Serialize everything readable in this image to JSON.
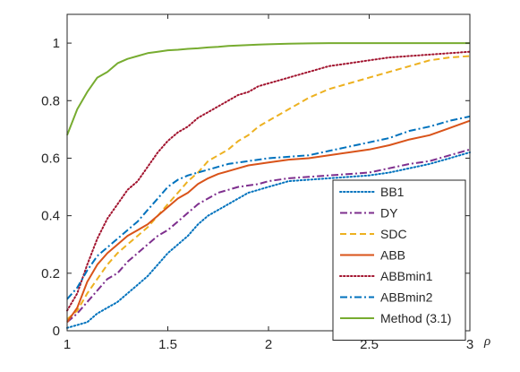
{
  "chart_data": {
    "type": "line",
    "title": "",
    "xlabel": "ρ",
    "ylabel": "",
    "xlim": [
      1,
      3
    ],
    "ylim": [
      0,
      1.1
    ],
    "xticks": [
      1,
      1.5,
      2,
      2.5,
      3
    ],
    "xtick_labels": [
      "1",
      "1.5",
      "2",
      "2.5",
      "3"
    ],
    "yticks": [
      0,
      0.2,
      0.4,
      0.6,
      0.8,
      1
    ],
    "ytick_labels": [
      "0",
      "0.2",
      "0.4",
      "0.6",
      "0.8",
      "1"
    ],
    "grid": false,
    "legend_position": "bottom-right",
    "x": [
      1,
      1.05,
      1.1,
      1.15,
      1.2,
      1.25,
      1.3,
      1.35,
      1.4,
      1.45,
      1.5,
      1.55,
      1.6,
      1.65,
      1.7,
      1.75,
      1.8,
      1.85,
      1.9,
      1.95,
      2,
      2.1,
      2.2,
      2.3,
      2.4,
      2.5,
      2.6,
      2.7,
      2.8,
      2.9,
      3
    ],
    "series": [
      {
        "name": "BB1",
        "color": "#0072BD",
        "dash": "dotted",
        "values": [
          0.01,
          0.02,
          0.03,
          0.06,
          0.08,
          0.1,
          0.13,
          0.16,
          0.19,
          0.23,
          0.27,
          0.3,
          0.33,
          0.37,
          0.4,
          0.42,
          0.44,
          0.46,
          0.48,
          0.49,
          0.5,
          0.52,
          0.525,
          0.53,
          0.535,
          0.54,
          0.55,
          0.565,
          0.58,
          0.6,
          0.62
        ]
      },
      {
        "name": "DY",
        "color": "#7E2F8E",
        "dash": "dashdot",
        "values": [
          0.03,
          0.06,
          0.1,
          0.14,
          0.18,
          0.2,
          0.24,
          0.27,
          0.3,
          0.33,
          0.35,
          0.38,
          0.41,
          0.44,
          0.46,
          0.48,
          0.49,
          0.5,
          0.505,
          0.51,
          0.52,
          0.53,
          0.535,
          0.54,
          0.545,
          0.55,
          0.565,
          0.58,
          0.59,
          0.61,
          0.63
        ]
      },
      {
        "name": "SDC",
        "color": "#EDB120",
        "dash": "dashed",
        "values": [
          0.04,
          0.07,
          0.13,
          0.18,
          0.23,
          0.27,
          0.3,
          0.33,
          0.36,
          0.4,
          0.44,
          0.48,
          0.52,
          0.55,
          0.59,
          0.61,
          0.63,
          0.66,
          0.68,
          0.71,
          0.73,
          0.77,
          0.81,
          0.84,
          0.86,
          0.88,
          0.9,
          0.92,
          0.94,
          0.95,
          0.955
        ]
      },
      {
        "name": "ABB",
        "color": "#D95319",
        "dash": "solid",
        "values": [
          0.03,
          0.08,
          0.17,
          0.23,
          0.27,
          0.3,
          0.33,
          0.35,
          0.37,
          0.4,
          0.43,
          0.46,
          0.48,
          0.51,
          0.53,
          0.545,
          0.555,
          0.565,
          0.575,
          0.58,
          0.585,
          0.595,
          0.6,
          0.61,
          0.62,
          0.63,
          0.645,
          0.665,
          0.68,
          0.705,
          0.73
        ]
      },
      {
        "name": "ABBmin1",
        "color": "#A2142F",
        "dash": "dotted",
        "values": [
          0.07,
          0.13,
          0.23,
          0.32,
          0.39,
          0.44,
          0.49,
          0.52,
          0.57,
          0.62,
          0.66,
          0.69,
          0.71,
          0.74,
          0.76,
          0.78,
          0.8,
          0.82,
          0.83,
          0.85,
          0.86,
          0.88,
          0.9,
          0.92,
          0.93,
          0.94,
          0.95,
          0.955,
          0.96,
          0.965,
          0.97
        ]
      },
      {
        "name": "ABBmin2",
        "color": "#0072BD",
        "dash": "dashdot",
        "values": [
          0.11,
          0.15,
          0.21,
          0.26,
          0.29,
          0.32,
          0.35,
          0.38,
          0.42,
          0.46,
          0.5,
          0.525,
          0.54,
          0.55,
          0.56,
          0.57,
          0.58,
          0.585,
          0.59,
          0.595,
          0.6,
          0.605,
          0.61,
          0.625,
          0.64,
          0.655,
          0.67,
          0.695,
          0.71,
          0.73,
          0.745
        ]
      },
      {
        "name": "Method (3.1)",
        "color": "#77AC30",
        "dash": "solid",
        "values": [
          0.68,
          0.77,
          0.83,
          0.88,
          0.9,
          0.93,
          0.945,
          0.955,
          0.965,
          0.97,
          0.975,
          0.977,
          0.98,
          0.982,
          0.985,
          0.987,
          0.99,
          0.992,
          0.993,
          0.995,
          0.996,
          0.998,
          0.999,
          1.0,
          1.0,
          1.0,
          1.0,
          1.0,
          1.0,
          1.0,
          1.0
        ]
      }
    ]
  }
}
